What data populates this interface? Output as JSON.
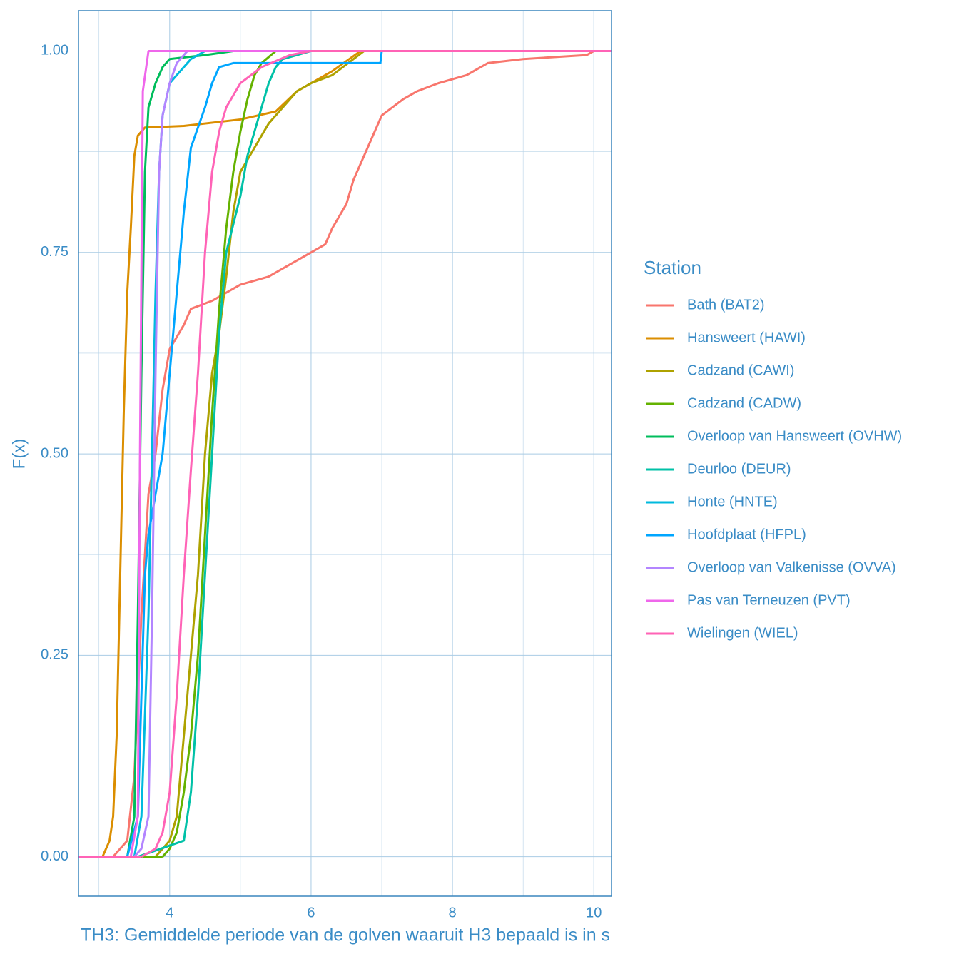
{
  "chart_data": {
    "type": "ecdf",
    "x_label": "TH3: Gemiddelde periode van de golven waaruit H3 bepaald is in s",
    "y_label": "F(x)",
    "legend_title": "Station",
    "legend_position": "right",
    "grid": true,
    "xlim": [
      2.71,
      10.25
    ],
    "ylim": [
      -0.049,
      1.05
    ],
    "xticks": [
      4,
      6,
      8,
      10
    ],
    "yticks": [
      {
        "value": 0,
        "label": "0.00"
      },
      {
        "value": 0.25,
        "label": "0.25"
      },
      {
        "value": 0.5,
        "label": "0.50"
      },
      {
        "value": 0.75,
        "label": "0.75"
      },
      {
        "value": 1,
        "label": "1.00"
      }
    ],
    "x_minor_grid": [
      3,
      5,
      7,
      9
    ],
    "y_minor_grid": [
      0.125,
      0.375,
      0.625,
      0.875
    ],
    "series": [
      {
        "name": "Bath (BAT2)",
        "color": "#F8766D",
        "x": [
          3.2,
          3.4,
          3.5,
          3.6,
          3.7,
          3.8,
          3.9,
          4.0,
          4.2,
          4.3,
          4.6,
          4.8,
          5.0,
          5.4,
          5.6,
          5.8,
          6.0,
          6.2,
          6.3,
          6.5,
          6.6,
          6.8,
          6.9,
          7.0,
          7.3,
          7.5,
          7.8,
          8.2,
          8.5,
          9.0,
          9.9,
          10.0
        ],
        "values": [
          0,
          0.02,
          0.1,
          0.3,
          0.45,
          0.5,
          0.58,
          0.63,
          0.66,
          0.68,
          0.69,
          0.7,
          0.71,
          0.72,
          0.73,
          0.74,
          0.75,
          0.76,
          0.78,
          0.81,
          0.84,
          0.88,
          0.9,
          0.92,
          0.94,
          0.95,
          0.96,
          0.97,
          0.985,
          0.99,
          0.995,
          1.0
        ]
      },
      {
        "name": "Hansweert (HAWI)",
        "color": "#DB8E00",
        "x": [
          3.05,
          3.15,
          3.2,
          3.25,
          3.3,
          3.35,
          3.4,
          3.45,
          3.5,
          3.55,
          3.65,
          4.2,
          5.0,
          5.5,
          5.8,
          6.3,
          6.7
        ],
        "values": [
          0,
          0.02,
          0.05,
          0.15,
          0.35,
          0.55,
          0.7,
          0.78,
          0.87,
          0.895,
          0.905,
          0.907,
          0.915,
          0.925,
          0.95,
          0.975,
          1.0
        ]
      },
      {
        "name": "Cadzand (CAWI)",
        "color": "#AEA200",
        "x": [
          3.8,
          4.0,
          4.1,
          4.2,
          4.3,
          4.4,
          4.5,
          4.6,
          4.7,
          4.8,
          4.9,
          5.0,
          5.2,
          5.4,
          5.6,
          5.8,
          6.0,
          6.3,
          6.75
        ],
        "values": [
          0,
          0.02,
          0.05,
          0.15,
          0.25,
          0.35,
          0.5,
          0.6,
          0.65,
          0.72,
          0.8,
          0.85,
          0.88,
          0.91,
          0.93,
          0.95,
          0.96,
          0.97,
          1.0
        ]
      },
      {
        "name": "Cadzand (CADW)",
        "color": "#64B200",
        "x": [
          3.9,
          4.0,
          4.1,
          4.2,
          4.3,
          4.4,
          4.5,
          4.6,
          4.7,
          4.8,
          4.9,
          5.0,
          5.1,
          5.2,
          5.3,
          5.5
        ],
        "values": [
          0,
          0.01,
          0.03,
          0.08,
          0.15,
          0.25,
          0.4,
          0.55,
          0.68,
          0.78,
          0.85,
          0.9,
          0.94,
          0.97,
          0.985,
          1.0
        ]
      },
      {
        "name": "Overloop van Hansweert (OVHW)",
        "color": "#00BD5C",
        "x": [
          3.4,
          3.5,
          3.55,
          3.6,
          3.65,
          3.7,
          3.8,
          3.9,
          4.0,
          4.5,
          4.9
        ],
        "values": [
          0,
          0.05,
          0.3,
          0.6,
          0.85,
          0.93,
          0.96,
          0.98,
          0.99,
          0.995,
          1.0
        ]
      },
      {
        "name": "Deurloo (DEUR)",
        "color": "#00C1A7",
        "x": [
          3.55,
          4.2,
          4.3,
          4.4,
          4.5,
          4.6,
          4.7,
          4.8,
          5.0,
          5.1,
          5.2,
          5.3,
          5.4,
          5.5,
          5.6,
          6.0
        ],
        "values": [
          0,
          0.02,
          0.08,
          0.2,
          0.35,
          0.5,
          0.65,
          0.75,
          0.82,
          0.87,
          0.9,
          0.93,
          0.96,
          0.98,
          0.99,
          1.0
        ]
      },
      {
        "name": "Honte (HNTE)",
        "color": "#00BADE",
        "x": [
          3.5,
          3.6,
          3.7,
          3.75,
          3.8,
          3.85,
          3.9,
          4.0,
          4.3,
          4.5
        ],
        "values": [
          0,
          0.05,
          0.3,
          0.5,
          0.7,
          0.85,
          0.92,
          0.96,
          0.99,
          1.0
        ]
      },
      {
        "name": "Hoofdplaat (HFPL)",
        "color": "#00A6FF",
        "x": [
          3.4,
          3.55,
          3.6,
          3.65,
          3.7,
          3.8,
          3.9,
          4.0,
          4.1,
          4.2,
          4.3,
          4.5,
          4.6,
          4.7,
          4.9,
          6.98,
          7.0
        ],
        "values": [
          0,
          0.05,
          0.2,
          0.35,
          0.4,
          0.45,
          0.5,
          0.6,
          0.7,
          0.8,
          0.88,
          0.93,
          0.96,
          0.98,
          0.985,
          0.985,
          1.0
        ]
      },
      {
        "name": "Overloop van Valkenisse (OVVA)",
        "color": "#B385FF",
        "x": [
          3.5,
          3.6,
          3.7,
          3.75,
          3.8,
          3.85,
          3.9,
          4.0,
          4.1,
          4.25
        ],
        "values": [
          0,
          0.01,
          0.05,
          0.3,
          0.6,
          0.85,
          0.92,
          0.96,
          0.985,
          1.0
        ]
      },
      {
        "name": "Pas van Terneuzen (PVT)",
        "color": "#EF67EB",
        "x": [
          3.45,
          3.55,
          3.58,
          3.62,
          3.7
        ],
        "values": [
          0,
          0.05,
          0.5,
          0.95,
          1.0
        ]
      },
      {
        "name": "Wielingen (WIEL)",
        "color": "#FF63B6",
        "x": [
          3.6,
          3.8,
          3.9,
          4.0,
          4.1,
          4.2,
          4.3,
          4.4,
          4.5,
          4.6,
          4.7,
          4.8,
          5.0,
          5.3,
          5.7,
          6.0
        ],
        "values": [
          0,
          0.01,
          0.03,
          0.08,
          0.2,
          0.35,
          0.48,
          0.6,
          0.75,
          0.85,
          0.9,
          0.93,
          0.96,
          0.98,
          0.995,
          1.0
        ]
      }
    ]
  }
}
